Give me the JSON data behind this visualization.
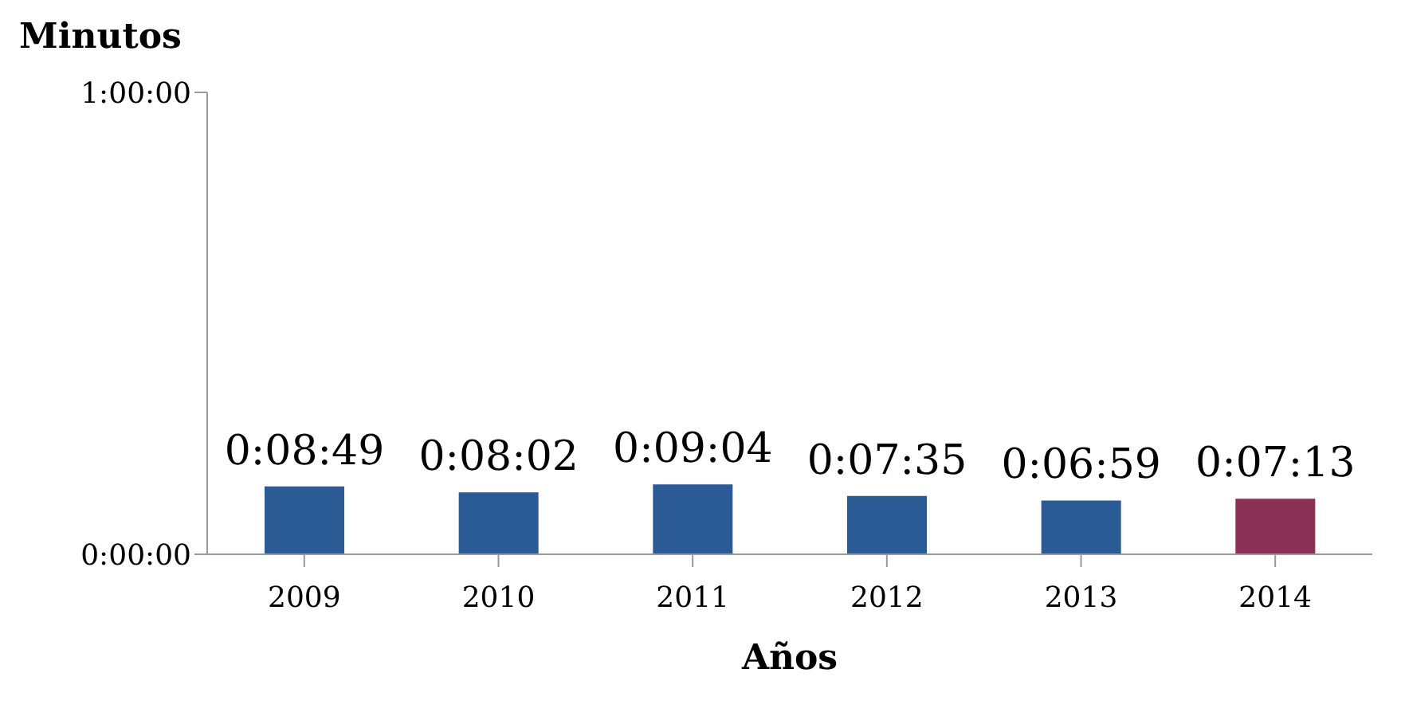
{
  "chart_data": {
    "type": "bar",
    "ylabel": "Minutos",
    "xlabel": "Años",
    "categories": [
      "2009",
      "2010",
      "2011",
      "2012",
      "2013",
      "2014"
    ],
    "values": [
      8.817,
      8.033,
      9.067,
      7.583,
      6.983,
      7.217
    ],
    "colors": [
      "#2b5b94",
      "#2b5b94",
      "#2b5b94",
      "#2b5b94",
      "#2b5b94",
      "#8b3155"
    ],
    "value_labels": [
      "0:08:49",
      "0:08:02",
      "0:09:04",
      "0:07:35",
      "0:06:59",
      "0:07:13"
    ],
    "ylim": [
      0,
      60
    ],
    "yticks": [
      {
        "value": 0,
        "label": "0:00:00"
      },
      {
        "value": 60,
        "label": "1:00:00"
      }
    ],
    "grid": false,
    "legend": false
  }
}
